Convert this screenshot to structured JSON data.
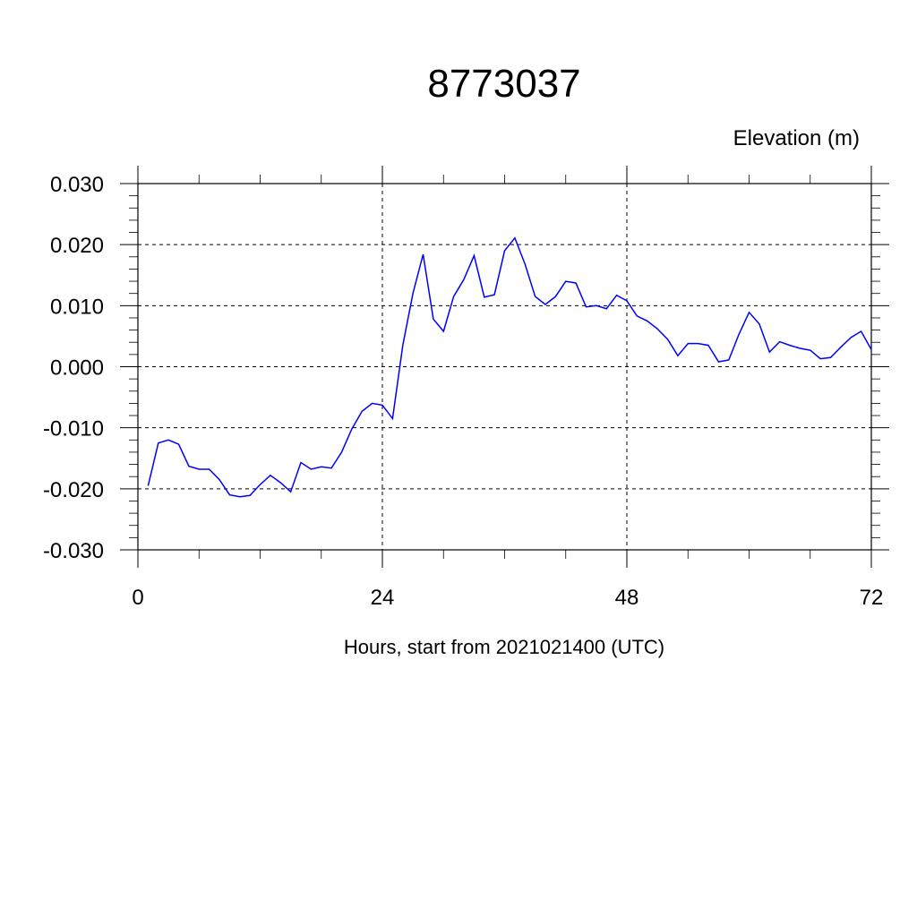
{
  "chart_data": {
    "type": "line",
    "title": "8773037",
    "ylabel": "Elevation (m)",
    "xlabel": "Hours, start from 2021021400 (UTC)",
    "xlim": [
      0,
      72
    ],
    "ylim": [
      -0.03,
      0.03
    ],
    "x_ticks": [
      0,
      24,
      48,
      72
    ],
    "x_tick_labels": [
      "0",
      "24",
      "48",
      "72"
    ],
    "y_ticks": [
      -0.03,
      -0.02,
      -0.01,
      0.0,
      0.01,
      0.02,
      0.03
    ],
    "y_tick_labels": [
      "-0.030",
      "-0.020",
      "-0.010",
      "0.000",
      "0.010",
      "0.020",
      "0.030"
    ],
    "grid": true,
    "line_color": "#0000ff",
    "series": [
      {
        "x": [
          1,
          2,
          3,
          4,
          5,
          6,
          7,
          8,
          9,
          10,
          11,
          12,
          13,
          14,
          15,
          16,
          17,
          18,
          19,
          20,
          21,
          22,
          23,
          24,
          25,
          26,
          27,
          28,
          29,
          30,
          31,
          32,
          33,
          34,
          35,
          36,
          37,
          38,
          39,
          40,
          41,
          42,
          43,
          44,
          45,
          46,
          47,
          48,
          49,
          50,
          51,
          52,
          53,
          54,
          55,
          56,
          57,
          58,
          59,
          60,
          61,
          62,
          63,
          64,
          65,
          66,
          67,
          68,
          69,
          70,
          71,
          72
        ],
        "values": [
          -0.0195,
          -0.0125,
          -0.012,
          -0.0127,
          -0.0163,
          -0.0168,
          -0.0168,
          -0.0185,
          -0.021,
          -0.0213,
          -0.0211,
          -0.0193,
          -0.0178,
          -0.019,
          -0.0205,
          -0.0157,
          -0.0168,
          -0.0164,
          -0.0166,
          -0.014,
          -0.0102,
          -0.0073,
          -0.006,
          -0.0063,
          -0.0085,
          0.0035,
          0.012,
          0.0184,
          0.0078,
          0.0058,
          0.0115,
          0.0143,
          0.0182,
          0.0114,
          0.0118,
          0.019,
          0.0211,
          0.0168,
          0.0115,
          0.0102,
          0.0115,
          0.014,
          0.0137,
          0.0098,
          0.01,
          0.0095,
          0.0117,
          0.0108,
          0.0083,
          0.0075,
          0.0062,
          0.0045,
          0.0018,
          0.0038,
          0.0038,
          0.0035,
          0.0008,
          0.0011,
          0.0053,
          0.0089,
          0.007,
          0.0024,
          0.0041,
          0.0035,
          0.003,
          0.0027,
          0.0013,
          0.0015,
          0.0032,
          0.0048,
          0.0058,
          0.0028
        ]
      }
    ]
  }
}
